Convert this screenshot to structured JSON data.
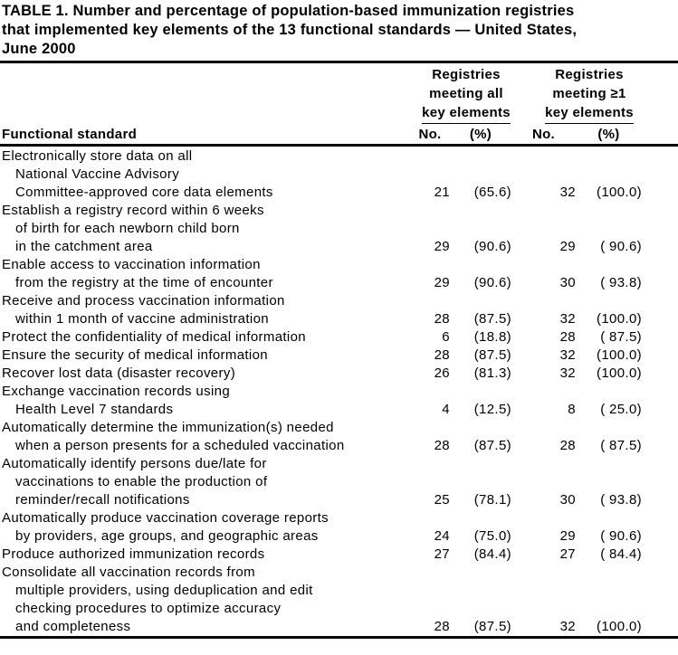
{
  "page": {
    "background_color": "#ffffff",
    "text_color": "#000000"
  },
  "title": {
    "lines": [
      "TABLE 1. Number and percentage of population-based immunization registries",
      "that implemented key elements of the 13 functional standards — United States,",
      "June 2000"
    ]
  },
  "header": {
    "row_header": "Functional standard",
    "groups": [
      {
        "lines": [
          "Registries",
          "meeting all"
        ],
        "underlined": "key elements"
      },
      {
        "lines": [
          "Registries",
          "meeting ≥1"
        ],
        "underlined": "key elements"
      }
    ],
    "subcolumns": {
      "no": "No.",
      "pct": "(%)"
    }
  },
  "rows": [
    {
      "lines": [
        "Electronically store data on all",
        "National Vaccine Advisory",
        "Committee-approved core data elements"
      ],
      "no_all": "21",
      "pct_all": "(65.6)",
      "no_ge1": "32",
      "pct_ge1": "(100.0)"
    },
    {
      "lines": [
        "Establish a registry record within 6 weeks",
        "of birth for each newborn child born",
        "in the catchment area"
      ],
      "no_all": "29",
      "pct_all": "(90.6)",
      "no_ge1": "29",
      "pct_ge1": "( 90.6)"
    },
    {
      "lines": [
        "Enable access to vaccination information",
        "from the registry at the time of encounter"
      ],
      "no_all": "29",
      "pct_all": "(90.6)",
      "no_ge1": "30",
      "pct_ge1": "( 93.8)"
    },
    {
      "lines": [
        "Receive and process vaccination information",
        "within 1 month of vaccine administration"
      ],
      "no_all": "28",
      "pct_all": "(87.5)",
      "no_ge1": "32",
      "pct_ge1": "(100.0)"
    },
    {
      "lines": [
        "Protect the confidentiality of medical information"
      ],
      "no_all": "6",
      "pct_all": "(18.8)",
      "no_ge1": "28",
      "pct_ge1": "( 87.5)"
    },
    {
      "lines": [
        "Ensure the security of medical information"
      ],
      "no_all": "28",
      "pct_all": "(87.5)",
      "no_ge1": "32",
      "pct_ge1": "(100.0)"
    },
    {
      "lines": [
        "Recover lost data (disaster recovery)"
      ],
      "no_all": "26",
      "pct_all": "(81.3)",
      "no_ge1": "32",
      "pct_ge1": "(100.0)"
    },
    {
      "lines": [
        "Exchange vaccination records using",
        "Health Level 7 standards"
      ],
      "no_all": "4",
      "pct_all": "(12.5)",
      "no_ge1": "8",
      "pct_ge1": "( 25.0)"
    },
    {
      "lines": [
        "Automatically determine the immunization(s) needed",
        "when a person presents for a scheduled vaccination"
      ],
      "no_all": "28",
      "pct_all": "(87.5)",
      "no_ge1": "28",
      "pct_ge1": "( 87.5)"
    },
    {
      "lines": [
        "Automatically identify persons due/late for",
        "vaccinations to enable the production of",
        "reminder/recall notifications"
      ],
      "no_all": "25",
      "pct_all": "(78.1)",
      "no_ge1": "30",
      "pct_ge1": "( 93.8)"
    },
    {
      "lines": [
        "Automatically produce vaccination coverage reports",
        "by providers, age groups, and geographic areas"
      ],
      "no_all": "24",
      "pct_all": "(75.0)",
      "no_ge1": "29",
      "pct_ge1": "( 90.6)"
    },
    {
      "lines": [
        "Produce authorized immunization records"
      ],
      "no_all": "27",
      "pct_all": "(84.4)",
      "no_ge1": "27",
      "pct_ge1": "( 84.4)"
    },
    {
      "lines": [
        "Consolidate all vaccination records from",
        "multiple providers, using deduplication and edit",
        "checking procedures to optimize accuracy",
        "and completeness"
      ],
      "no_all": "28",
      "pct_all": "(87.5)",
      "no_ge1": "32",
      "pct_ge1": "(100.0)"
    }
  ]
}
